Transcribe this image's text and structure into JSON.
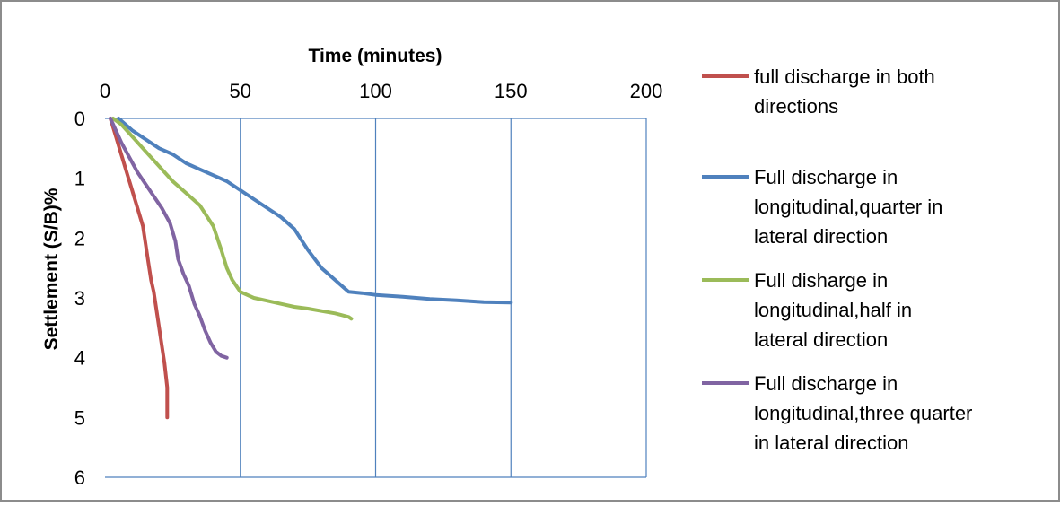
{
  "chart_data": {
    "type": "line",
    "title": "",
    "xlabel": "Time (minutes)",
    "ylabel": "Settlement (S/B)%",
    "xlim": [
      0,
      200
    ],
    "ylim": [
      0,
      6
    ],
    "y_inverted": true,
    "x_axis_position": "top",
    "x_ticks": [
      "0",
      "50",
      "100",
      "150",
      "200"
    ],
    "y_ticks": [
      "0",
      "1",
      "2",
      "3",
      "4",
      "5",
      "6"
    ],
    "grid": "vertical major gridlines only",
    "legend_position": "right",
    "series": [
      {
        "name": "full discharge in both directions",
        "color": "#c0504d",
        "points": [
          [
            2,
            0
          ],
          [
            4,
            0.3
          ],
          [
            6,
            0.6
          ],
          [
            8,
            0.9
          ],
          [
            10,
            1.2
          ],
          [
            12,
            1.5
          ],
          [
            14,
            1.8
          ],
          [
            15,
            2.1
          ],
          [
            16,
            2.4
          ],
          [
            17,
            2.7
          ],
          [
            18,
            2.9
          ],
          [
            19,
            3.2
          ],
          [
            20,
            3.5
          ],
          [
            21,
            3.8
          ],
          [
            22,
            4.1
          ],
          [
            23,
            4.5
          ],
          [
            23,
            5.0
          ]
        ]
      },
      {
        "name": "Full discharge in longitudinal,quarter in lateral direction",
        "color": "#4f81bd",
        "points": [
          [
            5,
            0
          ],
          [
            10,
            0.2
          ],
          [
            15,
            0.35
          ],
          [
            20,
            0.5
          ],
          [
            25,
            0.6
          ],
          [
            30,
            0.75
          ],
          [
            35,
            0.85
          ],
          [
            40,
            0.95
          ],
          [
            45,
            1.05
          ],
          [
            50,
            1.2
          ],
          [
            55,
            1.35
          ],
          [
            60,
            1.5
          ],
          [
            65,
            1.65
          ],
          [
            70,
            1.85
          ],
          [
            75,
            2.2
          ],
          [
            80,
            2.5
          ],
          [
            85,
            2.7
          ],
          [
            90,
            2.9
          ],
          [
            95,
            2.92
          ],
          [
            100,
            2.95
          ],
          [
            110,
            2.98
          ],
          [
            120,
            3.02
          ],
          [
            130,
            3.04
          ],
          [
            140,
            3.07
          ],
          [
            150,
            3.08
          ]
        ]
      },
      {
        "name": "Full disharge in longitudinal,half in lateral direction",
        "color": "#9bbb59",
        "points": [
          [
            3,
            0
          ],
          [
            6,
            0.1
          ],
          [
            10,
            0.3
          ],
          [
            15,
            0.55
          ],
          [
            20,
            0.8
          ],
          [
            25,
            1.05
          ],
          [
            30,
            1.25
          ],
          [
            35,
            1.45
          ],
          [
            40,
            1.8
          ],
          [
            43,
            2.2
          ],
          [
            45,
            2.5
          ],
          [
            47,
            2.7
          ],
          [
            50,
            2.9
          ],
          [
            55,
            3.0
          ],
          [
            60,
            3.05
          ],
          [
            65,
            3.1
          ],
          [
            70,
            3.15
          ],
          [
            75,
            3.18
          ],
          [
            80,
            3.22
          ],
          [
            85,
            3.26
          ],
          [
            90,
            3.32
          ],
          [
            91,
            3.35
          ]
        ]
      },
      {
        "name": "Full discharge in longitudinal,three quarter in lateral direction",
        "color": "#8064a2",
        "points": [
          [
            2,
            0
          ],
          [
            4,
            0.2
          ],
          [
            6,
            0.4
          ],
          [
            9,
            0.65
          ],
          [
            12,
            0.9
          ],
          [
            15,
            1.1
          ],
          [
            18,
            1.3
          ],
          [
            21,
            1.5
          ],
          [
            24,
            1.75
          ],
          [
            26,
            2.05
          ],
          [
            27,
            2.35
          ],
          [
            29,
            2.6
          ],
          [
            31,
            2.8
          ],
          [
            33,
            3.1
          ],
          [
            35,
            3.3
          ],
          [
            37,
            3.55
          ],
          [
            39,
            3.75
          ],
          [
            41,
            3.9
          ],
          [
            43,
            3.97
          ],
          [
            45,
            4.0
          ]
        ]
      }
    ]
  }
}
